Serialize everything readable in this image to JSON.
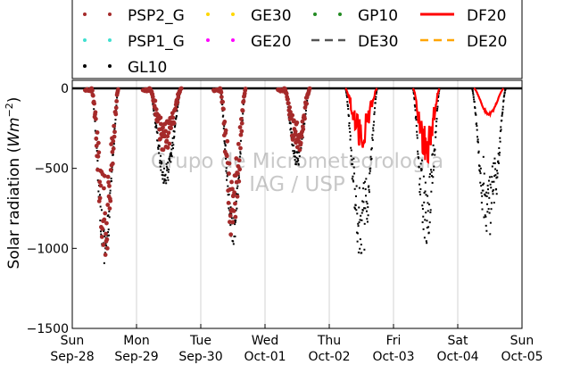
{
  "chart_data": {
    "type": "scatter",
    "title": "",
    "ylabel": "Solar radiation (Wm⁻²)",
    "ylabel_parts": {
      "main": "Solar radiation (",
      "unit": "Wm",
      "exp": "−2",
      "close": ")"
    },
    "xlabel": "",
    "ylim": [
      -1500,
      50
    ],
    "yticks": [
      0,
      -500,
      -1000,
      -1500
    ],
    "ytick_labels": [
      "0",
      "−500",
      "−1000",
      "−1500"
    ],
    "xlim": [
      0,
      7
    ],
    "xticks": [
      {
        "x": 0,
        "day": "Sun",
        "date": "Sep-28"
      },
      {
        "x": 1,
        "day": "Mon",
        "date": "Sep-29"
      },
      {
        "x": 2,
        "day": "Tue",
        "date": "Sep-30"
      },
      {
        "x": 3,
        "day": "Wed",
        "date": "Oct-01"
      },
      {
        "x": 4,
        "day": "Thu",
        "date": "Oct-02"
      },
      {
        "x": 5,
        "day": "Fri",
        "date": "Oct-03"
      },
      {
        "x": 6,
        "day": "Sat",
        "date": "Oct-04"
      },
      {
        "x": 7,
        "day": "Sun",
        "date": "Oct-05"
      }
    ],
    "grid": "vertical",
    "legend_position": "top",
    "watermark": [
      "Grupo de Micrometeorologia",
      "IAG / USP"
    ],
    "legend": [
      {
        "name": "PSP2_G",
        "style": "dots",
        "color": "#a52a2a"
      },
      {
        "name": "GE30",
        "style": "dots",
        "color": "#ffd700"
      },
      {
        "name": "GP10",
        "style": "dots",
        "color": "#228b22"
      },
      {
        "name": "DF20",
        "style": "line",
        "color": "#ff0000"
      },
      {
        "name": "PSP1_G",
        "style": "dots",
        "color": "#40e0d0"
      },
      {
        "name": "GE20",
        "style": "dots",
        "color": "#ff00ff"
      },
      {
        "name": "DE30",
        "style": "dash",
        "color": "#555555"
      },
      {
        "name": "DE20",
        "style": "dash",
        "color": "#ffa500"
      },
      {
        "name": "GL10",
        "style": "dots",
        "color": "#000000"
      }
    ],
    "series": [
      {
        "name": "GL10",
        "color": "#000000",
        "peaks": [
          {
            "start": 0.3,
            "end": 0.72,
            "peak": -1000,
            "center": 0.52
          },
          {
            "start": 1.2,
            "end": 1.7,
            "peak": -560,
            "center": 1.42
          },
          {
            "start": 2.3,
            "end": 2.7,
            "peak": -900,
            "center": 2.52
          },
          {
            "start": 3.3,
            "end": 3.7,
            "peak": -450,
            "center": 3.52
          },
          {
            "start": 4.25,
            "end": 4.75,
            "peak": -1100,
            "center": 4.48
          },
          {
            "start": 5.3,
            "end": 5.72,
            "peak": -1000,
            "center": 5.52
          },
          {
            "start": 6.22,
            "end": 6.75,
            "peak": -960,
            "center": 6.49
          }
        ]
      },
      {
        "name": "PSP2_G",
        "color": "#a52a2a",
        "peaks": [
          {
            "start": 0.3,
            "end": 0.72,
            "peak": -990,
            "center": 0.52
          },
          {
            "start": 1.2,
            "end": 1.7,
            "peak": -380,
            "center": 1.42
          },
          {
            "start": 2.3,
            "end": 2.7,
            "peak": -880,
            "center": 2.52
          },
          {
            "start": 3.3,
            "end": 3.7,
            "peak": -390,
            "center": 3.52
          }
        ]
      },
      {
        "name": "DF20",
        "color": "#ff0000",
        "peaks": [
          {
            "start": 4.25,
            "end": 4.75,
            "peak": -330,
            "center": 4.48
          },
          {
            "start": 5.3,
            "end": 5.72,
            "peak": -430,
            "center": 5.52
          },
          {
            "start": 6.25,
            "end": 6.72,
            "peak": -160,
            "center": 6.49
          }
        ]
      }
    ]
  }
}
